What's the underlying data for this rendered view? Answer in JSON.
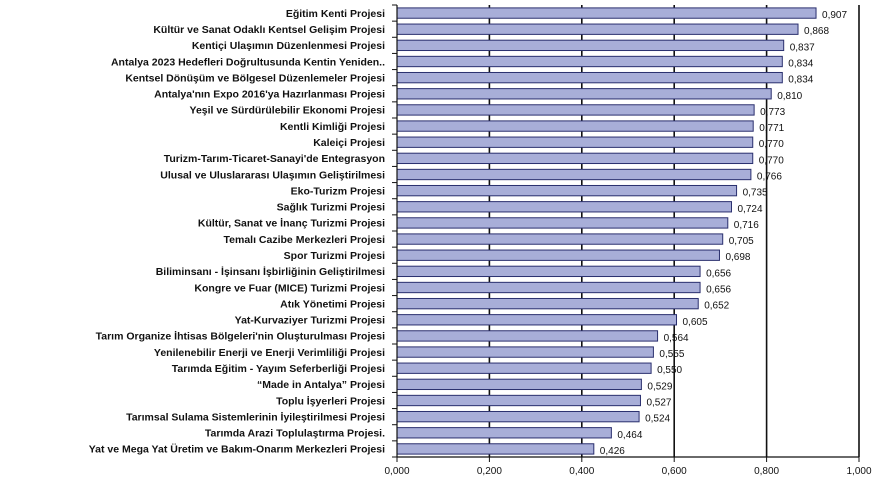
{
  "chart_data": {
    "type": "bar",
    "orientation": "horizontal",
    "title": "",
    "xlabel": "",
    "ylabel": "",
    "xlim": [
      0,
      1
    ],
    "x_ticks": [
      "0,000",
      "0,200",
      "0,400",
      "0,600",
      "0,800",
      "1,000"
    ],
    "x_tick_values": [
      0,
      0.2,
      0.4,
      0.6,
      0.8,
      1.0
    ],
    "grid": "vertical",
    "legend": "none",
    "bar_color": "#a8aed8",
    "bar_edge_color": "#2a2f6e",
    "categories": [
      "Eğitim Kenti Projesi",
      "Kültür ve Sanat Odaklı Kentsel Gelişim Projesi",
      "Kentiçi Ulaşımın Düzenlenmesi Projesi",
      "Antalya 2023 Hedefleri Doğrultusunda Kentin Yeniden..",
      "Kentsel Dönüşüm ve Bölgesel Düzenlemeler Projesi",
      "Antalya'nın Expo 2016'ya Hazırlanması Projesi",
      "Yeşil ve Sürdürülebilir Ekonomi Projesi",
      "Kentli Kimliği Projesi",
      "Kaleiçi Projesi",
      "Turizm-Tarım-Ticaret-Sanayi'de Entegrasyon",
      "Ulusal ve Uluslararası Ulaşımın Geliştirilmesi",
      "Eko-Turizm Projesi",
      "Sağlık Turizmi Projesi",
      "Kültür, Sanat ve İnanç Turizmi Projesi",
      "Temalı Cazibe Merkezleri Projesi",
      "Spor Turizmi Projesi",
      "Biliminsanı - İşinsanı İşbirliğinin Geliştirilmesi",
      "Kongre ve Fuar (MICE) Turizmi Projesi",
      "Atık Yönetimi Projesi",
      "Yat-Kurvaziyer Turizmi Projesi",
      "Tarım Organize İhtisas Bölgeleri'nin Oluşturulması Projesi",
      "Yenilenebilir Enerji ve Enerji Verimliliği Projesi",
      "Tarımda Eğitim - Yayım Seferberliği Projesi",
      "“Made in Antalya” Projesi",
      "Toplu İşyerleri Projesi",
      "Tarımsal Sulama Sistemlerinin İyileştirilmesi Projesi",
      "Tarımda Arazi Toplulaştırma Projesi.",
      "Yat ve Mega Yat Üretim ve Bakım-Onarım Merkezleri Projesi"
    ],
    "values": [
      0.907,
      0.868,
      0.837,
      0.834,
      0.834,
      0.81,
      0.773,
      0.771,
      0.77,
      0.77,
      0.766,
      0.735,
      0.724,
      0.716,
      0.705,
      0.698,
      0.656,
      0.656,
      0.652,
      0.605,
      0.564,
      0.555,
      0.55,
      0.529,
      0.527,
      0.524,
      0.464,
      0.426
    ],
    "value_labels": [
      "0,907",
      "0,868",
      "0,837",
      "0,834",
      "0,834",
      "0,810",
      "0,773",
      "0,771",
      "0,770",
      "0,770",
      "0,766",
      "0,735",
      "0,724",
      "0,716",
      "0,705",
      "0,698",
      "0,656",
      "0,656",
      "0,652",
      "0,605",
      "0,564",
      "0,555",
      "0,550",
      "0,529",
      "0,527",
      "0,524",
      "0,464",
      "0,426"
    ]
  }
}
